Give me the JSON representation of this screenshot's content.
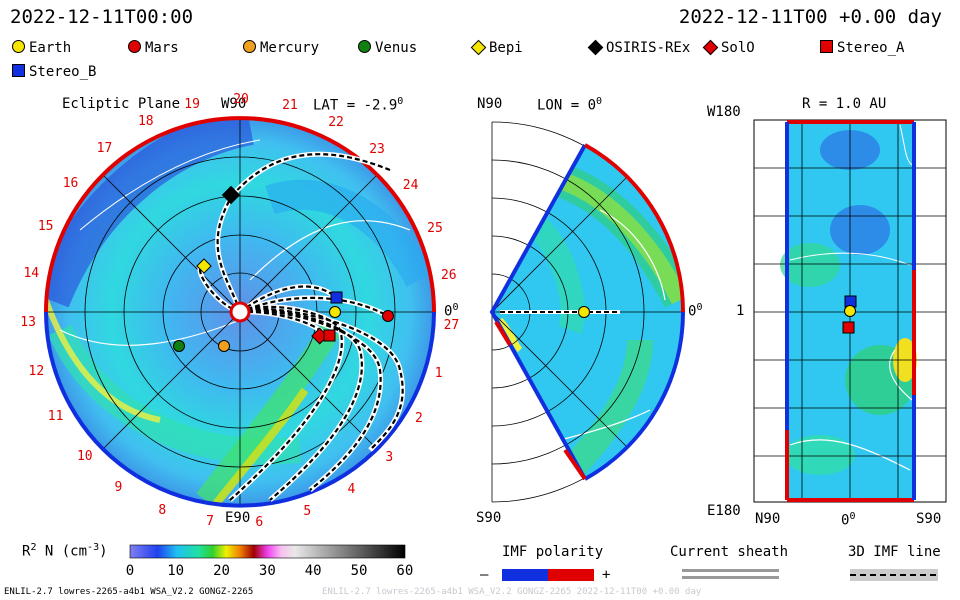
{
  "header": {
    "date_left": "2022-12-11T00:00",
    "date_right": "2022-12-11T00 +0.00 day"
  },
  "legend": [
    {
      "name": "Earth",
      "shape": "circle",
      "color": "#f5e600"
    },
    {
      "name": "Mars",
      "shape": "circle",
      "color": "#e00000"
    },
    {
      "name": "Mercury",
      "shape": "circle",
      "color": "#f0a020"
    },
    {
      "name": "Venus",
      "shape": "circle",
      "color": "#108010"
    },
    {
      "name": "Bepi",
      "shape": "diamond",
      "color": "#f5e600"
    },
    {
      "name": "OSIRIS-REx",
      "shape": "diamond",
      "color": "#000000"
    },
    {
      "name": "SolO",
      "shape": "diamond",
      "color": "#e00000"
    },
    {
      "name": "Stereo_A",
      "shape": "square",
      "color": "#e00000"
    },
    {
      "name": "Stereo_B",
      "shape": "square",
      "color": "#1030e0"
    }
  ],
  "panels": {
    "ecliptic": {
      "title": "Ecliptic Plane",
      "top_label": "W90",
      "lat": "LAT = -2.9",
      "deg": "0",
      "bottom_label": "E90",
      "right_label": "0",
      "right_deg": "0"
    },
    "meridional": {
      "top_label": "N90",
      "lon": "LON = 0",
      "deg": "0",
      "bottom_label": "S90",
      "right_label": "0",
      "right_deg": "0"
    },
    "radial": {
      "top_left": "W180",
      "r": "R = 1.0 AU",
      "left_mid": "1",
      "bottom_left": "E180",
      "bottom_n": "N90",
      "bottom_mid": "0",
      "bottom_deg": "0",
      "bottom_s": "S90"
    }
  },
  "carrington": [
    "19",
    "20",
    "21",
    "22",
    "23",
    "24",
    "25",
    "26",
    "27",
    "1",
    "2",
    "3",
    "4",
    "5",
    "6",
    "7",
    "8",
    "9",
    "10",
    "11",
    "12",
    "13",
    "14",
    "15",
    "16",
    "17",
    "18"
  ],
  "colorbar": {
    "label": "R",
    "label_sup": "2",
    "label_rest": " N (cm",
    "label_sup2": "-3",
    "label_end": ")",
    "ticks": [
      "0",
      "10",
      "20",
      "30",
      "40",
      "50",
      "60"
    ]
  },
  "imf": {
    "title": "IMF polarity",
    "minus": "–",
    "plus": "+",
    "neg_color": "#1030e0",
    "pos_color": "#e00000"
  },
  "sheath": {
    "title": "Current sheath"
  },
  "imfline": {
    "title": "3D IMF line"
  },
  "footer": {
    "left": "ENLIL-2.7 lowres-2265-a4b1 WSA_V2.2 GONGZ-2265",
    "right": "ENLIL-2.7 lowres-2265-a4b1 WSA_V2.2 GONGZ-2265 2022-12-11T00 +0.00 day"
  }
}
